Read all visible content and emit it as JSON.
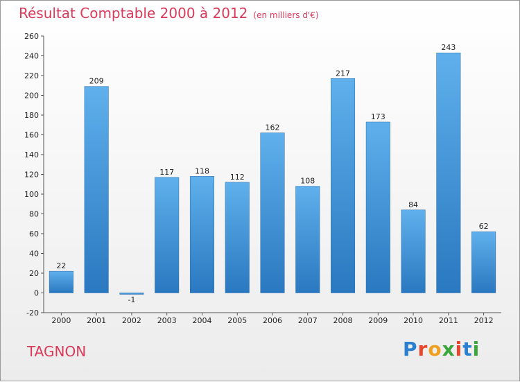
{
  "header": {
    "title": "Résultat Comptable 2000 à 2012",
    "subtitle": "(en milliers d'€)"
  },
  "footer": {
    "place": "TAGNON",
    "logo": [
      "P",
      "r",
      "o",
      "x",
      "i",
      "t",
      "i"
    ],
    "logo_colors": [
      "#2a7fd0",
      "#e8452c",
      "#f0a020",
      "#3aa63a",
      "#e8452c",
      "#2a7fd0",
      "#3aa63a"
    ]
  },
  "chart_data": {
    "type": "bar",
    "title": "Résultat Comptable 2000 à 2012",
    "subtitle": "(en milliers d'€)",
    "categories": [
      "2000",
      "2001",
      "2002",
      "2003",
      "2004",
      "2005",
      "2006",
      "2007",
      "2008",
      "2009",
      "2010",
      "2011",
      "2012"
    ],
    "values": [
      22,
      209,
      -1,
      117,
      118,
      112,
      162,
      108,
      217,
      173,
      84,
      243,
      62
    ],
    "data_labels": [
      "22",
      "209",
      "-1",
      "117",
      "118",
      "112",
      "162",
      "108",
      "217",
      "173",
      "84",
      "243",
      "62"
    ],
    "ylim": [
      -20,
      260
    ],
    "yticks": [
      -20,
      0,
      20,
      40,
      60,
      80,
      100,
      120,
      140,
      160,
      180,
      200,
      220,
      240,
      260
    ],
    "grid": false,
    "bar_color": "#3a8fd8",
    "xlabel": "",
    "ylabel": ""
  }
}
